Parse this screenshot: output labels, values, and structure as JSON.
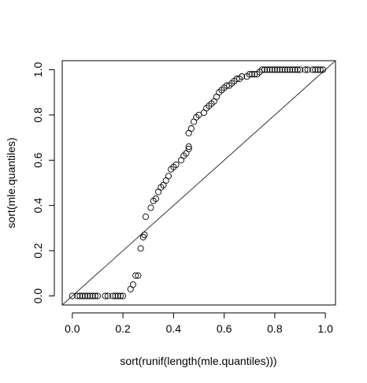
{
  "chart_data": {
    "type": "scatter",
    "xlabel": "sort(runif(length(mle.quantiles)))",
    "ylabel": "sort(mle.quantiles)",
    "xlim": [
      -0.04,
      1.04
    ],
    "ylim": [
      -0.04,
      1.04
    ],
    "x_ticks": [
      0.0,
      0.2,
      0.4,
      0.6,
      0.8,
      1.0
    ],
    "x_tick_labels": [
      "0.0",
      "0.2",
      "0.4",
      "0.6",
      "0.8",
      "1.0"
    ],
    "y_ticks": [
      0.0,
      0.2,
      0.4,
      0.6,
      0.8,
      1.0
    ],
    "y_tick_labels": [
      "0.0",
      "0.2",
      "0.4",
      "0.6",
      "0.8",
      "1.0"
    ],
    "grid": false,
    "reference_line": {
      "from": [
        0,
        0
      ],
      "to": [
        1,
        1
      ]
    },
    "marker": "open-circle",
    "point_color": "#000000",
    "points": [
      [
        0.0,
        0.0
      ],
      [
        0.02,
        0.0
      ],
      [
        0.03,
        0.0
      ],
      [
        0.04,
        0.0
      ],
      [
        0.05,
        0.0
      ],
      [
        0.06,
        0.0
      ],
      [
        0.07,
        0.0
      ],
      [
        0.08,
        0.0
      ],
      [
        0.09,
        0.0
      ],
      [
        0.1,
        0.0
      ],
      [
        0.13,
        0.0
      ],
      [
        0.14,
        0.0
      ],
      [
        0.16,
        0.0
      ],
      [
        0.17,
        0.0
      ],
      [
        0.18,
        0.0
      ],
      [
        0.19,
        0.0
      ],
      [
        0.2,
        0.0
      ],
      [
        0.23,
        0.03
      ],
      [
        0.24,
        0.05
      ],
      [
        0.25,
        0.09
      ],
      [
        0.26,
        0.09
      ],
      [
        0.27,
        0.21
      ],
      [
        0.28,
        0.26
      ],
      [
        0.285,
        0.27
      ],
      [
        0.29,
        0.35
      ],
      [
        0.31,
        0.39
      ],
      [
        0.32,
        0.42
      ],
      [
        0.33,
        0.43
      ],
      [
        0.34,
        0.46
      ],
      [
        0.35,
        0.48
      ],
      [
        0.36,
        0.49
      ],
      [
        0.37,
        0.51
      ],
      [
        0.38,
        0.53
      ],
      [
        0.39,
        0.56
      ],
      [
        0.4,
        0.57
      ],
      [
        0.41,
        0.58
      ],
      [
        0.43,
        0.6
      ],
      [
        0.44,
        0.62
      ],
      [
        0.45,
        0.63
      ],
      [
        0.46,
        0.65
      ],
      [
        0.46,
        0.66
      ],
      [
        0.46,
        0.72
      ],
      [
        0.47,
        0.74
      ],
      [
        0.48,
        0.77
      ],
      [
        0.49,
        0.79
      ],
      [
        0.5,
        0.8
      ],
      [
        0.52,
        0.81
      ],
      [
        0.53,
        0.83
      ],
      [
        0.54,
        0.84
      ],
      [
        0.55,
        0.85
      ],
      [
        0.56,
        0.86
      ],
      [
        0.57,
        0.88
      ],
      [
        0.58,
        0.9
      ],
      [
        0.59,
        0.91
      ],
      [
        0.6,
        0.92
      ],
      [
        0.61,
        0.93
      ],
      [
        0.62,
        0.93
      ],
      [
        0.63,
        0.94
      ],
      [
        0.64,
        0.95
      ],
      [
        0.65,
        0.96
      ],
      [
        0.66,
        0.96
      ],
      [
        0.67,
        0.97
      ],
      [
        0.69,
        0.97
      ],
      [
        0.7,
        0.98
      ],
      [
        0.71,
        0.98
      ],
      [
        0.72,
        0.98
      ],
      [
        0.73,
        0.98
      ],
      [
        0.74,
        0.99
      ],
      [
        0.75,
        1.0
      ],
      [
        0.76,
        1.0
      ],
      [
        0.77,
        1.0
      ],
      [
        0.78,
        1.0
      ],
      [
        0.79,
        1.0
      ],
      [
        0.8,
        1.0
      ],
      [
        0.81,
        1.0
      ],
      [
        0.82,
        1.0
      ],
      [
        0.83,
        1.0
      ],
      [
        0.84,
        1.0
      ],
      [
        0.85,
        1.0
      ],
      [
        0.86,
        1.0
      ],
      [
        0.87,
        1.0
      ],
      [
        0.88,
        1.0
      ],
      [
        0.89,
        1.0
      ],
      [
        0.9,
        1.0
      ],
      [
        0.92,
        1.0
      ],
      [
        0.93,
        1.0
      ],
      [
        0.95,
        1.0
      ],
      [
        0.96,
        1.0
      ],
      [
        0.97,
        1.0
      ],
      [
        0.98,
        1.0
      ],
      [
        0.99,
        1.0
      ]
    ]
  }
}
